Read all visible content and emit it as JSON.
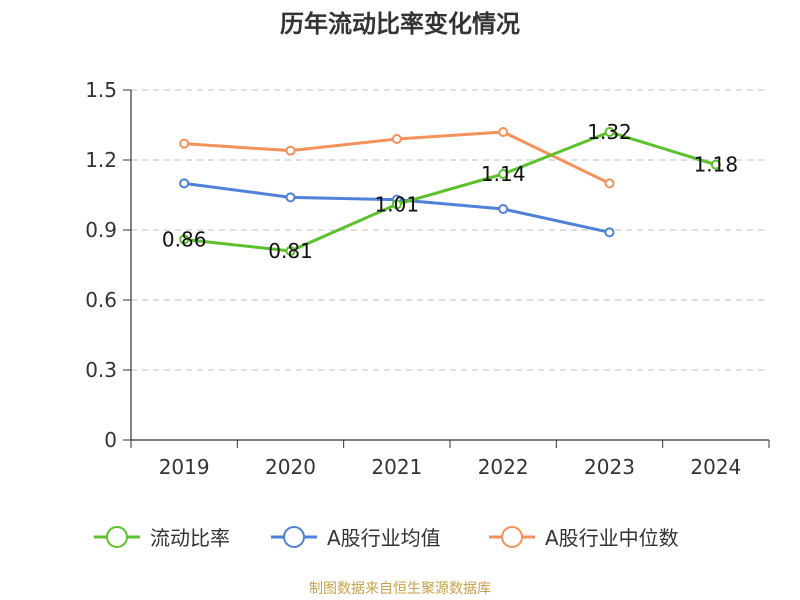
{
  "title": "历年流动比率变化情况",
  "source": "制图数据来自恒生聚源数据库",
  "chart_data": {
    "type": "line",
    "categories": [
      "2019",
      "2020",
      "2021",
      "2022",
      "2023",
      "2024"
    ],
    "ylim": [
      0,
      1.5
    ],
    "yticks": [
      "0",
      "0.3",
      "0.6",
      "0.9",
      "1.2",
      "1.5"
    ],
    "grid": true,
    "legend_position": "bottom",
    "series": [
      {
        "name": "流动比率",
        "color": "#5cc12d",
        "labels": true,
        "values": [
          0.86,
          0.81,
          1.01,
          1.14,
          1.32,
          1.18
        ]
      },
      {
        "name": "A股行业均值",
        "color": "#4f81d9",
        "labels": false,
        "values": [
          1.1,
          1.04,
          1.03,
          0.99,
          0.89,
          null
        ]
      },
      {
        "name": "A股行业中位数",
        "color": "#f5915a",
        "labels": false,
        "values": [
          1.27,
          1.24,
          1.29,
          1.32,
          1.1,
          null
        ]
      }
    ]
  }
}
